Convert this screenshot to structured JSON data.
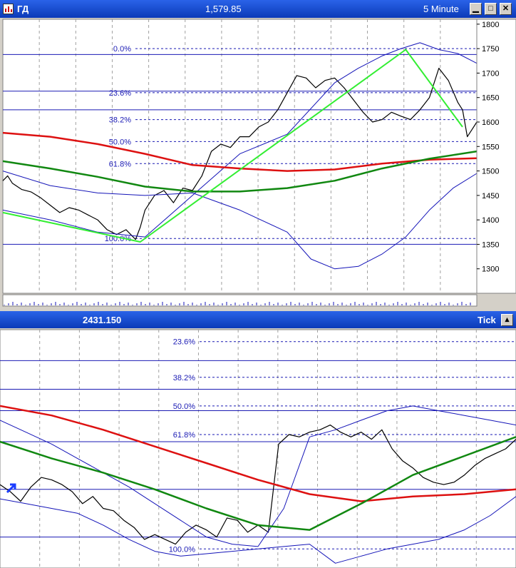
{
  "window1": {
    "symbol": "ГД",
    "price": "1,579.85",
    "interval": "5 Minute"
  },
  "window2": {
    "value": "2431.150",
    "interval": "Tick"
  },
  "colors": {
    "price": "#000000",
    "bands": "#1414b8",
    "ma_red": "#dd1111",
    "ma_green": "#118811",
    "zigzag": "#33ee33",
    "fib": "#1a1ab4"
  },
  "chart_data": [
    {
      "type": "line",
      "title": "",
      "y_axis_ticks": [
        1300,
        1350,
        1400,
        1450,
        1500,
        1550,
        1600,
        1650,
        1700,
        1750,
        1800
      ],
      "ylim": [
        1250,
        1810
      ],
      "xlim": [
        0,
        100
      ],
      "fib_levels": [
        {
          "label": "0.0%",
          "value": 1750
        },
        {
          "label": "23.6%",
          "value": 1660
        },
        {
          "label": "38.2%",
          "value": 1605
        },
        {
          "label": "50.0%",
          "value": 1560
        },
        {
          "label": "61.8%",
          "value": 1515
        },
        {
          "label": "100.0%",
          "value": 1362
        }
      ],
      "horizontal_lines": [
        1738,
        1663,
        1625,
        1350
      ],
      "series": [
        {
          "role": "price",
          "x": [
            0,
            1,
            2,
            4,
            6,
            8,
            10,
            12,
            14,
            16,
            18,
            20,
            22,
            24,
            26,
            28,
            29,
            30,
            31,
            32,
            34,
            36,
            38,
            40,
            42,
            44,
            46,
            48,
            50,
            52,
            54,
            56,
            58,
            60,
            62,
            64,
            66,
            68,
            70,
            72,
            74,
            76,
            78,
            80,
            82,
            84,
            86,
            88,
            90,
            92,
            94,
            96,
            97,
            98,
            99,
            100
          ],
          "y": [
            1480,
            1490,
            1475,
            1462,
            1457,
            1445,
            1430,
            1415,
            1425,
            1420,
            1410,
            1400,
            1380,
            1370,
            1380,
            1360,
            1385,
            1420,
            1435,
            1450,
            1460,
            1435,
            1465,
            1460,
            1490,
            1540,
            1555,
            1548,
            1570,
            1570,
            1590,
            1600,
            1625,
            1660,
            1695,
            1690,
            1670,
            1685,
            1690,
            1670,
            1645,
            1620,
            1600,
            1605,
            1620,
            1612,
            1605,
            1625,
            1650,
            1710,
            1685,
            1640,
            1625,
            1570,
            1585,
            1600
          ]
        },
        {
          "role": "upper-band",
          "x": [
            0,
            10,
            20,
            30,
            40,
            50,
            60,
            70,
            75,
            80,
            84,
            88,
            92,
            96,
            100
          ],
          "y": [
            1420,
            1400,
            1375,
            1365,
            1450,
            1535,
            1575,
            1680,
            1710,
            1735,
            1750,
            1762,
            1748,
            1740,
            1720
          ]
        },
        {
          "role": "lower-band",
          "x": [
            0,
            10,
            20,
            30,
            40,
            50,
            60,
            65,
            70,
            75,
            80,
            85,
            90,
            95,
            100
          ],
          "y": [
            1500,
            1470,
            1455,
            1450,
            1455,
            1420,
            1375,
            1320,
            1300,
            1305,
            1330,
            1365,
            1420,
            1465,
            1495
          ]
        },
        {
          "role": "red-ma",
          "x": [
            0,
            10,
            20,
            30,
            40,
            50,
            60,
            70,
            80,
            90,
            100
          ],
          "y": [
            1578,
            1570,
            1555,
            1535,
            1512,
            1505,
            1500,
            1503,
            1515,
            1523,
            1526
          ]
        },
        {
          "role": "green-ma",
          "x": [
            0,
            10,
            20,
            30,
            40,
            50,
            60,
            70,
            80,
            90,
            100
          ],
          "y": [
            1520,
            1505,
            1488,
            1468,
            1458,
            1458,
            1465,
            1480,
            1505,
            1525,
            1540
          ]
        },
        {
          "role": "zigzag",
          "x": [
            0,
            29,
            85,
            97
          ],
          "y": [
            1415,
            1355,
            1748,
            1590
          ]
        }
      ]
    },
    {
      "type": "line",
      "title": "",
      "ylim": [
        0,
        100
      ],
      "xlim": [
        0,
        100
      ],
      "fib_levels": [
        {
          "label": "23.6%",
          "value": 95
        },
        {
          "label": "38.2%",
          "value": 80
        },
        {
          "label": "50.0%",
          "value": 68
        },
        {
          "label": "61.8%",
          "value": 56
        },
        {
          "label": "100.0%",
          "value": 8
        }
      ],
      "horizontal_lines": [
        87,
        75,
        66,
        53,
        33,
        13
      ],
      "series": [
        {
          "role": "price",
          "x": [
            0,
            2,
            4,
            6,
            8,
            10,
            12,
            14,
            16,
            18,
            20,
            22,
            24,
            26,
            28,
            30,
            32,
            34,
            36,
            38,
            40,
            42,
            44,
            46,
            48,
            50,
            52,
            54,
            56,
            58,
            60,
            62,
            64,
            66,
            68,
            70,
            72,
            74,
            76,
            78,
            80,
            82,
            84,
            86,
            88,
            90,
            92,
            94,
            96,
            98,
            100
          ],
          "y": [
            35,
            32,
            28,
            34,
            38,
            37,
            35,
            32,
            27,
            30,
            25,
            24,
            20,
            17,
            12,
            14,
            12,
            10,
            15,
            18,
            16,
            13,
            21,
            20,
            15,
            18,
            15,
            52,
            56,
            55,
            57,
            58,
            60,
            57,
            55,
            57,
            54,
            58,
            50,
            45,
            42,
            38,
            36,
            35,
            36,
            39,
            43,
            46,
            48,
            50,
            54
          ]
        },
        {
          "role": "upper-band",
          "x": [
            0,
            5,
            10,
            15,
            20,
            25,
            30,
            35,
            40,
            45,
            50,
            55,
            60,
            65,
            70,
            75,
            80,
            85,
            90,
            95,
            100
          ],
          "y": [
            62,
            57,
            52,
            46,
            40,
            34,
            27,
            20,
            13,
            10,
            9,
            25,
            55,
            58,
            62,
            66,
            68,
            66,
            64,
            62,
            60
          ]
        },
        {
          "role": "lower-band",
          "x": [
            0,
            5,
            10,
            15,
            20,
            25,
            30,
            35,
            40,
            45,
            50,
            55,
            60,
            65,
            70,
            75,
            80,
            85,
            90,
            95,
            100
          ],
          "y": [
            29,
            27,
            25,
            23,
            18,
            12,
            7,
            5,
            6,
            7,
            8,
            9,
            10,
            2,
            5,
            8,
            10,
            12,
            16,
            22,
            30
          ]
        },
        {
          "role": "red-ma",
          "x": [
            0,
            10,
            20,
            30,
            40,
            50,
            60,
            70,
            80,
            90,
            100
          ],
          "y": [
            68,
            64,
            58,
            51,
            44,
            37,
            31,
            28,
            30,
            31,
            33
          ]
        },
        {
          "role": "green-ma",
          "x": [
            0,
            10,
            20,
            30,
            40,
            50,
            60,
            70,
            80,
            90,
            100
          ],
          "y": [
            53,
            46,
            40,
            33,
            25,
            18,
            16,
            27,
            39,
            47,
            55
          ]
        }
      ]
    }
  ]
}
